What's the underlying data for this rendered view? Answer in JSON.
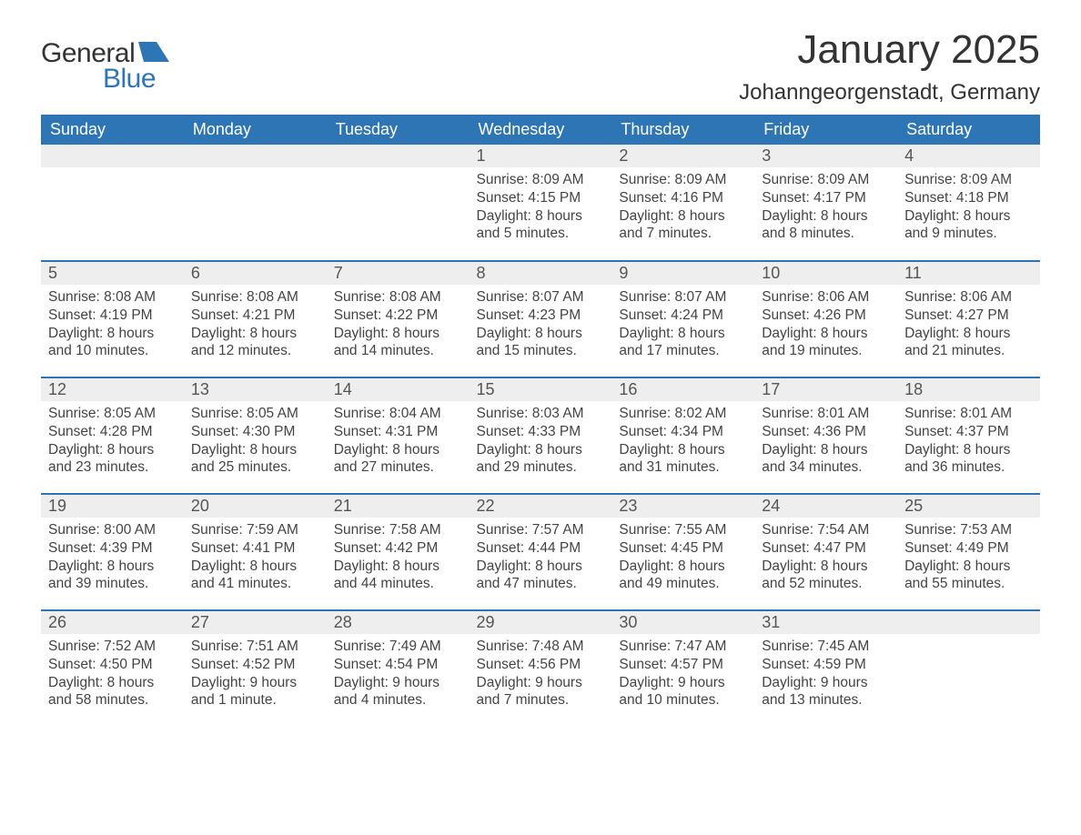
{
  "logo": {
    "word1": "General",
    "word2": "Blue",
    "accent_color": "#2e75b6"
  },
  "title": "January 2025",
  "location": "Johanngeorgenstadt, Germany",
  "colors": {
    "header_bg": "#2e75b6",
    "header_text": "#ffffff",
    "daynum_bg": "#eeeeee",
    "row_divider": "#2e75b6",
    "body_text": "#444444"
  },
  "fonts": {
    "title_size_pt": 33,
    "location_size_pt": 18,
    "header_size_pt": 14,
    "body_size_pt": 12
  },
  "weekdays": [
    "Sunday",
    "Monday",
    "Tuesday",
    "Wednesday",
    "Thursday",
    "Friday",
    "Saturday"
  ],
  "weeks": [
    [
      null,
      null,
      null,
      {
        "day": "1",
        "sunrise": "Sunrise: 8:09 AM",
        "sunset": "Sunset: 4:15 PM",
        "daylight": "Daylight: 8 hours and 5 minutes."
      },
      {
        "day": "2",
        "sunrise": "Sunrise: 8:09 AM",
        "sunset": "Sunset: 4:16 PM",
        "daylight": "Daylight: 8 hours and 7 minutes."
      },
      {
        "day": "3",
        "sunrise": "Sunrise: 8:09 AM",
        "sunset": "Sunset: 4:17 PM",
        "daylight": "Daylight: 8 hours and 8 minutes."
      },
      {
        "day": "4",
        "sunrise": "Sunrise: 8:09 AM",
        "sunset": "Sunset: 4:18 PM",
        "daylight": "Daylight: 8 hours and 9 minutes."
      }
    ],
    [
      {
        "day": "5",
        "sunrise": "Sunrise: 8:08 AM",
        "sunset": "Sunset: 4:19 PM",
        "daylight": "Daylight: 8 hours and 10 minutes."
      },
      {
        "day": "6",
        "sunrise": "Sunrise: 8:08 AM",
        "sunset": "Sunset: 4:21 PM",
        "daylight": "Daylight: 8 hours and 12 minutes."
      },
      {
        "day": "7",
        "sunrise": "Sunrise: 8:08 AM",
        "sunset": "Sunset: 4:22 PM",
        "daylight": "Daylight: 8 hours and 14 minutes."
      },
      {
        "day": "8",
        "sunrise": "Sunrise: 8:07 AM",
        "sunset": "Sunset: 4:23 PM",
        "daylight": "Daylight: 8 hours and 15 minutes."
      },
      {
        "day": "9",
        "sunrise": "Sunrise: 8:07 AM",
        "sunset": "Sunset: 4:24 PM",
        "daylight": "Daylight: 8 hours and 17 minutes."
      },
      {
        "day": "10",
        "sunrise": "Sunrise: 8:06 AM",
        "sunset": "Sunset: 4:26 PM",
        "daylight": "Daylight: 8 hours and 19 minutes."
      },
      {
        "day": "11",
        "sunrise": "Sunrise: 8:06 AM",
        "sunset": "Sunset: 4:27 PM",
        "daylight": "Daylight: 8 hours and 21 minutes."
      }
    ],
    [
      {
        "day": "12",
        "sunrise": "Sunrise: 8:05 AM",
        "sunset": "Sunset: 4:28 PM",
        "daylight": "Daylight: 8 hours and 23 minutes."
      },
      {
        "day": "13",
        "sunrise": "Sunrise: 8:05 AM",
        "sunset": "Sunset: 4:30 PM",
        "daylight": "Daylight: 8 hours and 25 minutes."
      },
      {
        "day": "14",
        "sunrise": "Sunrise: 8:04 AM",
        "sunset": "Sunset: 4:31 PM",
        "daylight": "Daylight: 8 hours and 27 minutes."
      },
      {
        "day": "15",
        "sunrise": "Sunrise: 8:03 AM",
        "sunset": "Sunset: 4:33 PM",
        "daylight": "Daylight: 8 hours and 29 minutes."
      },
      {
        "day": "16",
        "sunrise": "Sunrise: 8:02 AM",
        "sunset": "Sunset: 4:34 PM",
        "daylight": "Daylight: 8 hours and 31 minutes."
      },
      {
        "day": "17",
        "sunrise": "Sunrise: 8:01 AM",
        "sunset": "Sunset: 4:36 PM",
        "daylight": "Daylight: 8 hours and 34 minutes."
      },
      {
        "day": "18",
        "sunrise": "Sunrise: 8:01 AM",
        "sunset": "Sunset: 4:37 PM",
        "daylight": "Daylight: 8 hours and 36 minutes."
      }
    ],
    [
      {
        "day": "19",
        "sunrise": "Sunrise: 8:00 AM",
        "sunset": "Sunset: 4:39 PM",
        "daylight": "Daylight: 8 hours and 39 minutes."
      },
      {
        "day": "20",
        "sunrise": "Sunrise: 7:59 AM",
        "sunset": "Sunset: 4:41 PM",
        "daylight": "Daylight: 8 hours and 41 minutes."
      },
      {
        "day": "21",
        "sunrise": "Sunrise: 7:58 AM",
        "sunset": "Sunset: 4:42 PM",
        "daylight": "Daylight: 8 hours and 44 minutes."
      },
      {
        "day": "22",
        "sunrise": "Sunrise: 7:57 AM",
        "sunset": "Sunset: 4:44 PM",
        "daylight": "Daylight: 8 hours and 47 minutes."
      },
      {
        "day": "23",
        "sunrise": "Sunrise: 7:55 AM",
        "sunset": "Sunset: 4:45 PM",
        "daylight": "Daylight: 8 hours and 49 minutes."
      },
      {
        "day": "24",
        "sunrise": "Sunrise: 7:54 AM",
        "sunset": "Sunset: 4:47 PM",
        "daylight": "Daylight: 8 hours and 52 minutes."
      },
      {
        "day": "25",
        "sunrise": "Sunrise: 7:53 AM",
        "sunset": "Sunset: 4:49 PM",
        "daylight": "Daylight: 8 hours and 55 minutes."
      }
    ],
    [
      {
        "day": "26",
        "sunrise": "Sunrise: 7:52 AM",
        "sunset": "Sunset: 4:50 PM",
        "daylight": "Daylight: 8 hours and 58 minutes."
      },
      {
        "day": "27",
        "sunrise": "Sunrise: 7:51 AM",
        "sunset": "Sunset: 4:52 PM",
        "daylight": "Daylight: 9 hours and 1 minute."
      },
      {
        "day": "28",
        "sunrise": "Sunrise: 7:49 AM",
        "sunset": "Sunset: 4:54 PM",
        "daylight": "Daylight: 9 hours and 4 minutes."
      },
      {
        "day": "29",
        "sunrise": "Sunrise: 7:48 AM",
        "sunset": "Sunset: 4:56 PM",
        "daylight": "Daylight: 9 hours and 7 minutes."
      },
      {
        "day": "30",
        "sunrise": "Sunrise: 7:47 AM",
        "sunset": "Sunset: 4:57 PM",
        "daylight": "Daylight: 9 hours and 10 minutes."
      },
      {
        "day": "31",
        "sunrise": "Sunrise: 7:45 AM",
        "sunset": "Sunset: 4:59 PM",
        "daylight": "Daylight: 9 hours and 13 minutes."
      },
      null
    ]
  ]
}
